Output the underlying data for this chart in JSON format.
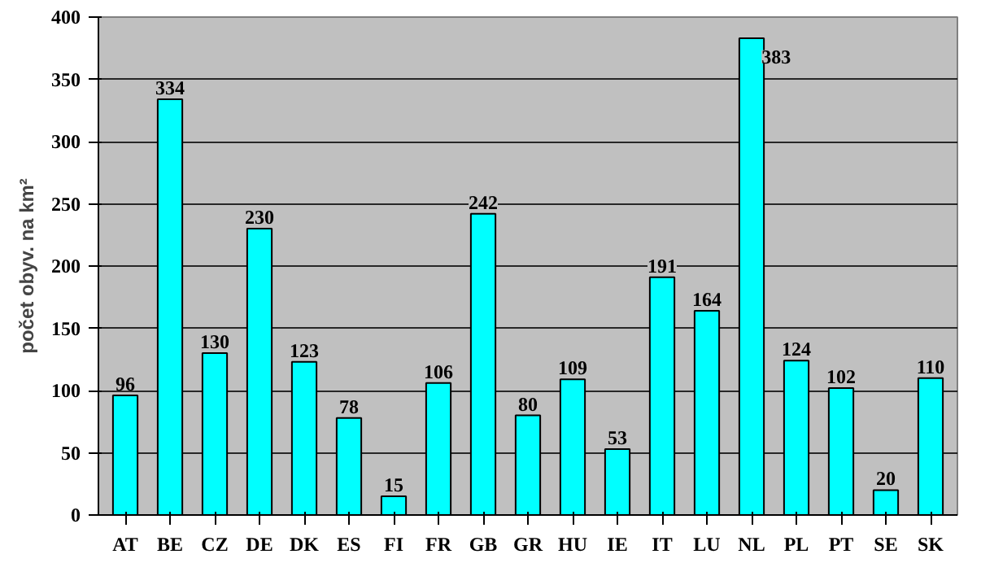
{
  "chart_data": {
    "type": "bar",
    "ylabel": "počet obyv. na km²",
    "categories": [
      "AT",
      "BE",
      "CZ",
      "DE",
      "DK",
      "ES",
      "FI",
      "FR",
      "GB",
      "GR",
      "HU",
      "IE",
      "IT",
      "LU",
      "NL",
      "PL",
      "PT",
      "SE",
      "SK"
    ],
    "values": [
      96,
      334,
      130,
      230,
      123,
      78,
      15,
      106,
      242,
      80,
      109,
      53,
      191,
      164,
      383,
      124,
      102,
      20,
      110
    ],
    "color": "#00ffff",
    "ylim": [
      0,
      400
    ],
    "yticks": [
      0,
      50,
      100,
      150,
      200,
      250,
      300,
      350,
      400
    ],
    "grid": "y",
    "data_labels": true
  }
}
